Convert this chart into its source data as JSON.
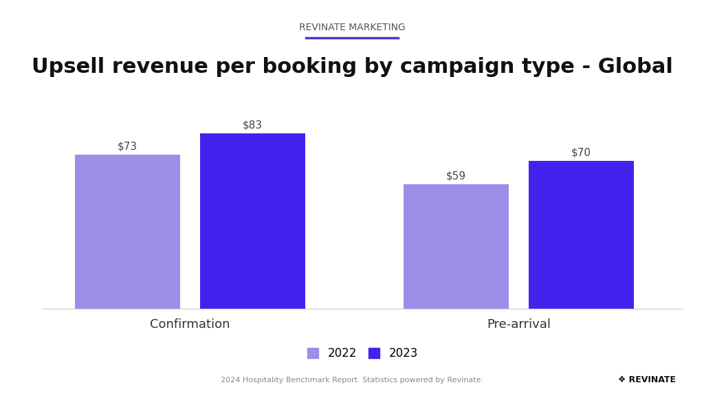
{
  "title": "Upsell revenue per booking by campaign type - Global",
  "subtitle": "REVINATE MARKETING",
  "subtitle_line_color": "#5533cc",
  "categories": [
    "Confirmation",
    "Pre-arrival"
  ],
  "values_2022": [
    73,
    59
  ],
  "values_2023": [
    83,
    70
  ],
  "color_2022": "#9b8ee8",
  "color_2023": "#4422ee",
  "bar_width": 0.32,
  "legend_labels": [
    "2022",
    "2023"
  ],
  "footer_text": "2024 Hospitality Benchmark Report. Statistics powered by Revinate.",
  "background_color": "#ffffff",
  "title_fontsize": 22,
  "subtitle_fontsize": 10,
  "category_fontsize": 13,
  "label_fontsize": 11,
  "legend_fontsize": 12
}
